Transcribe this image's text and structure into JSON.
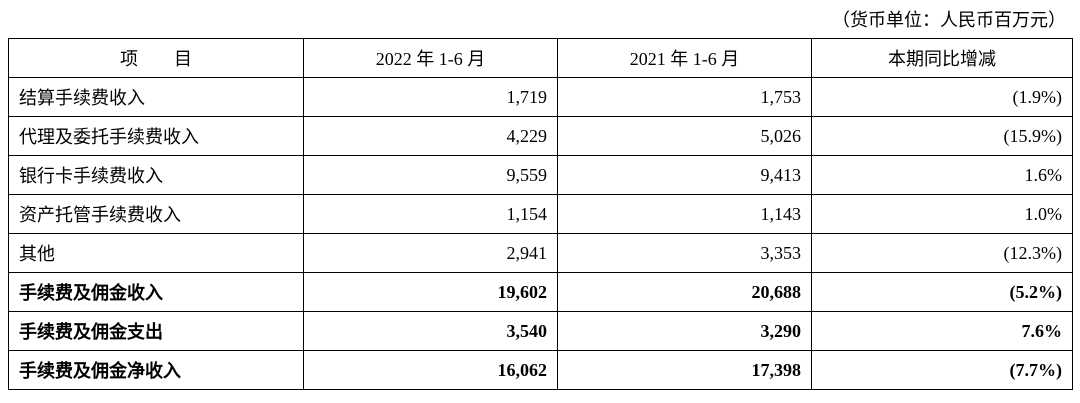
{
  "unit_note": "（货币单位：人民币百万元）",
  "table": {
    "header": [
      "项　　目",
      "2022 年 1-6 月",
      "2021 年 1-6 月",
      "本期同比增减"
    ],
    "rows": [
      [
        "结算手续费收入",
        "1,719",
        "1,753",
        "(1.9%)"
      ],
      [
        "代理及委托手续费收入",
        "4,229",
        "5,026",
        "(15.9%)"
      ],
      [
        "银行卡手续费收入",
        "9,559",
        "9,413",
        "1.6%"
      ],
      [
        "资产托管手续费收入",
        "1,154",
        "1,143",
        "1.0%"
      ],
      [
        "其他",
        "2,941",
        "3,353",
        "(12.3%)"
      ],
      [
        "手续费及佣金收入",
        "19,602",
        "20,688",
        "(5.2%)"
      ],
      [
        "手续费及佣金支出",
        "3,540",
        "3,290",
        "7.6%"
      ],
      [
        "手续费及佣金净收入",
        "16,062",
        "17,398",
        "(7.7%)"
      ]
    ]
  }
}
